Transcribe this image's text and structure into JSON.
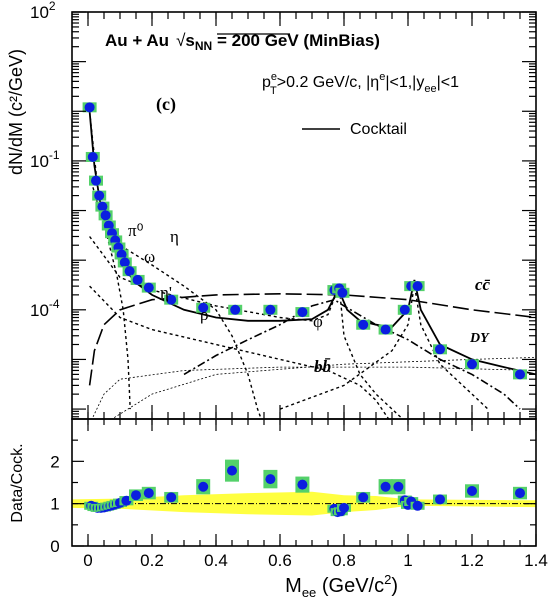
{
  "chart_data": [
    {
      "type": "line",
      "title": "Au + Au  √s_NN = 200 GeV (MinBias)",
      "title_parts": {
        "lead": "Au + Au",
        "sqrt": "√",
        "s": "s",
        "sub": "NN",
        "tail": " = 200 GeV (MinBias)"
      },
      "cuts": {
        "p": "p",
        "sup_e": "e",
        "sub_T": "T",
        "rest1": ">0.2 GeV/c, |η",
        "sup_e2": "e",
        "rest2": "|<1,|y",
        "sub_ee": "ee",
        "rest3": "|<1"
      },
      "panel_label": "(c)",
      "ylabel": "dN/dM (c²/GeV)",
      "xlim": [
        -0.05,
        1.4
      ],
      "ylog": true,
      "ylim_exp": [
        -6.2,
        2
      ],
      "y_ticks": [
        {
          "exp": 2,
          "label": "10",
          "sup": "2"
        },
        {
          "exp": -1,
          "label": "10",
          "sup": "-1"
        },
        {
          "exp": -4,
          "label": "10",
          "sup": "-4"
        }
      ],
      "legend": {
        "position": "top-right",
        "entries": [
          {
            "label": "Cocktail",
            "style": "solid"
          }
        ]
      },
      "data_points": {
        "x": [
          0.005,
          0.015,
          0.025,
          0.035,
          0.045,
          0.055,
          0.065,
          0.075,
          0.085,
          0.095,
          0.105,
          0.115,
          0.13,
          0.155,
          0.19,
          0.26,
          0.36,
          0.46,
          0.57,
          0.67,
          0.77,
          0.785,
          0.795,
          0.86,
          0.93,
          0.99,
          1.01,
          1.03,
          1.1,
          1.2,
          1.35
        ],
        "y": [
          1.2,
          0.12,
          0.04,
          0.02,
          0.012,
          0.008,
          0.005,
          0.0035,
          0.0025,
          0.0018,
          0.0013,
          0.0009,
          0.0006,
          0.0004,
          0.00028,
          0.00016,
          0.00011,
          0.0001,
          0.0001,
          9e-05,
          0.00025,
          0.00027,
          0.00022,
          5e-05,
          4e-05,
          0.0001,
          0.0003,
          0.0003,
          1.6e-05,
          8e-06,
          5e-06
        ]
      },
      "cocktail": {
        "x": [
          0.005,
          0.02,
          0.04,
          0.06,
          0.08,
          0.1,
          0.12,
          0.15,
          0.2,
          0.3,
          0.4,
          0.5,
          0.6,
          0.7,
          0.75,
          0.77,
          0.78,
          0.79,
          0.81,
          0.85,
          0.9,
          0.95,
          1.0,
          1.02,
          1.04,
          1.1,
          1.2,
          1.3,
          1.4
        ],
        "y": [
          1.0,
          0.08,
          0.012,
          0.004,
          0.0018,
          0.001,
          0.0006,
          0.00035,
          0.0002,
          0.0001,
          7e-05,
          6e-05,
          6e-05,
          6.5e-05,
          0.0001,
          0.00018,
          0.0003,
          0.0002,
          0.0001,
          6e-05,
          5e-05,
          4.5e-05,
          0.0001,
          0.0004,
          0.0001,
          2e-05,
          1e-05,
          7e-06,
          5e-06
        ]
      },
      "components": [
        {
          "name": "π⁰",
          "style": "dotted",
          "x": [
            0.005,
            0.03,
            0.06,
            0.09,
            0.11,
            0.125,
            0.132
          ],
          "y": [
            1.0,
            0.03,
            0.003,
            0.0005,
            0.0001,
            1e-05,
            1e-06
          ]
        },
        {
          "name": "η",
          "style": "dotted",
          "x": [
            0.005,
            0.05,
            0.1,
            0.2,
            0.3,
            0.4,
            0.45,
            0.5,
            0.53,
            0.547
          ],
          "y": [
            0.05,
            0.005,
            0.002,
            0.0008,
            0.0003,
            0.0001,
            3e-05,
            5e-06,
            1e-06,
            5e-07
          ]
        },
        {
          "name": "ω",
          "style": "dotted",
          "x": [
            0.005,
            0.1,
            0.2,
            0.4,
            0.6,
            0.7,
            0.75,
            0.78,
            0.785,
            0.8,
            0.85,
            0.9,
            1.0
          ],
          "y": [
            0.003,
            0.00045,
            0.00025,
            0.00012,
            7e-05,
            6e-05,
            8e-05,
            0.00025,
            0.0003,
            3e-05,
            5e-06,
            2e-06,
            5e-07
          ]
        },
        {
          "name": "η'",
          "style": "dotted",
          "x": [
            0.005,
            0.1,
            0.2,
            0.4,
            0.6,
            0.75,
            0.85,
            0.9,
            0.95
          ],
          "y": [
            0.0003,
            7e-05,
            4e-05,
            2e-05,
            1e-05,
            6e-06,
            3e-06,
            1.5e-06,
            5e-07
          ]
        },
        {
          "name": "ρ",
          "style": "dashdot",
          "x": [
            0.3,
            0.4,
            0.5,
            0.6,
            0.7,
            0.77,
            0.8,
            0.9,
            1.0,
            1.1,
            1.2,
            1.3,
            1.35
          ],
          "y": [
            5e-06,
            1.2e-05,
            2.5e-05,
            5e-05,
            0.00012,
            0.00016,
            0.00012,
            5e-05,
            2.5e-05,
            1e-05,
            5e-06,
            2e-06,
            1e-06
          ]
        },
        {
          "name": "φ",
          "style": "dotted",
          "x": [
            0.6,
            0.8,
            0.95,
            1.0,
            1.015,
            1.02,
            1.025,
            1.04,
            1.1,
            1.2,
            1.25
          ],
          "y": [
            1e-06,
            3e-06,
            1.5e-05,
            5e-05,
            0.0002,
            0.0003,
            0.0002,
            5e-05,
            8e-06,
            2e-06,
            1e-06
          ]
        },
        {
          "name": "cc̄",
          "style": "dashed",
          "x": [
            0.005,
            0.02,
            0.05,
            0.1,
            0.2,
            0.4,
            0.6,
            0.8,
            1.0,
            1.2,
            1.4
          ],
          "y": [
            3e-06,
            1.5e-05,
            5e-05,
            0.0001,
            0.00016,
            0.0002,
            0.00021,
            0.0002,
            0.00016,
            0.0001,
            7e-05
          ]
        },
        {
          "name": "bb̄",
          "style": "thin-dotted",
          "x": [
            0.005,
            0.05,
            0.1,
            0.3,
            0.6,
            1.0,
            1.4
          ],
          "y": [
            5e-07,
            2e-06,
            4e-06,
            6e-06,
            7e-06,
            7e-06,
            6e-06
          ]
        },
        {
          "name": "DY",
          "style": "thin-dotted",
          "x": [
            0.05,
            0.2,
            0.4,
            0.8,
            1.2,
            1.4
          ],
          "y": [
            5e-07,
            2e-06,
            5e-06,
            8e-06,
            1e-05,
            1.1e-05
          ]
        }
      ]
    },
    {
      "type": "scatter",
      "ylabel": "Data/Cock.",
      "xlabel_parts": {
        "M": "M",
        "sub": "ee",
        "rest": " (GeV/c",
        "sup": "2",
        "close": ")"
      },
      "xlim": [
        -0.05,
        1.4
      ],
      "ylim": [
        0,
        3
      ],
      "x_ticks": [
        0,
        0.2,
        0.4,
        0.6,
        0.8,
        1,
        1.2,
        1.4
      ],
      "x_tick_labels": [
        "0",
        "0.2",
        "0.4",
        "0.6",
        "0.8",
        "1",
        "1.2",
        "1.4"
      ],
      "y_ticks": [
        0,
        1,
        2
      ],
      "y_tick_labels": [
        "0",
        "1",
        "2"
      ],
      "reference_line": 1,
      "band": {
        "x": [
          -0.05,
          0.1,
          0.3,
          0.5,
          0.7,
          0.8,
          0.9,
          1.0,
          1.4
        ],
        "lo": [
          0.9,
          0.88,
          0.8,
          0.75,
          0.72,
          0.8,
          0.85,
          0.95,
          0.92
        ],
        "hi": [
          1.1,
          1.12,
          1.2,
          1.25,
          1.28,
          1.2,
          1.18,
          1.1,
          1.08
        ]
      },
      "x": [
        0.01,
        0.02,
        0.03,
        0.04,
        0.05,
        0.06,
        0.07,
        0.08,
        0.09,
        0.1,
        0.12,
        0.15,
        0.19,
        0.26,
        0.36,
        0.45,
        0.57,
        0.67,
        0.77,
        0.78,
        0.79,
        0.8,
        0.86,
        0.93,
        0.97,
        0.99,
        1.0,
        1.01,
        1.03,
        1.1,
        1.2,
        1.35
      ],
      "values": [
        0.95,
        0.92,
        0.9,
        0.9,
        0.91,
        0.93,
        0.95,
        0.97,
        1.0,
        1.02,
        1.07,
        1.2,
        1.25,
        1.15,
        1.4,
        1.78,
        1.58,
        1.45,
        0.88,
        0.8,
        0.82,
        0.9,
        1.15,
        1.4,
        1.4,
        1.08,
        0.97,
        1.05,
        0.95,
        1.1,
        1.3,
        1.25
      ]
    }
  ],
  "legend": {
    "cocktail": "Cocktail"
  },
  "labels": {
    "pi0": "π⁰",
    "eta": "η",
    "omega": "ω",
    "etap": "η'",
    "rho": "ρ",
    "phi": "φ",
    "cc": "cc̄",
    "bb": "bb̄",
    "dy": "DY"
  },
  "colors": {
    "data": "#0b1ee0",
    "syst_box": "#54d16a",
    "band": "#ffff40"
  }
}
